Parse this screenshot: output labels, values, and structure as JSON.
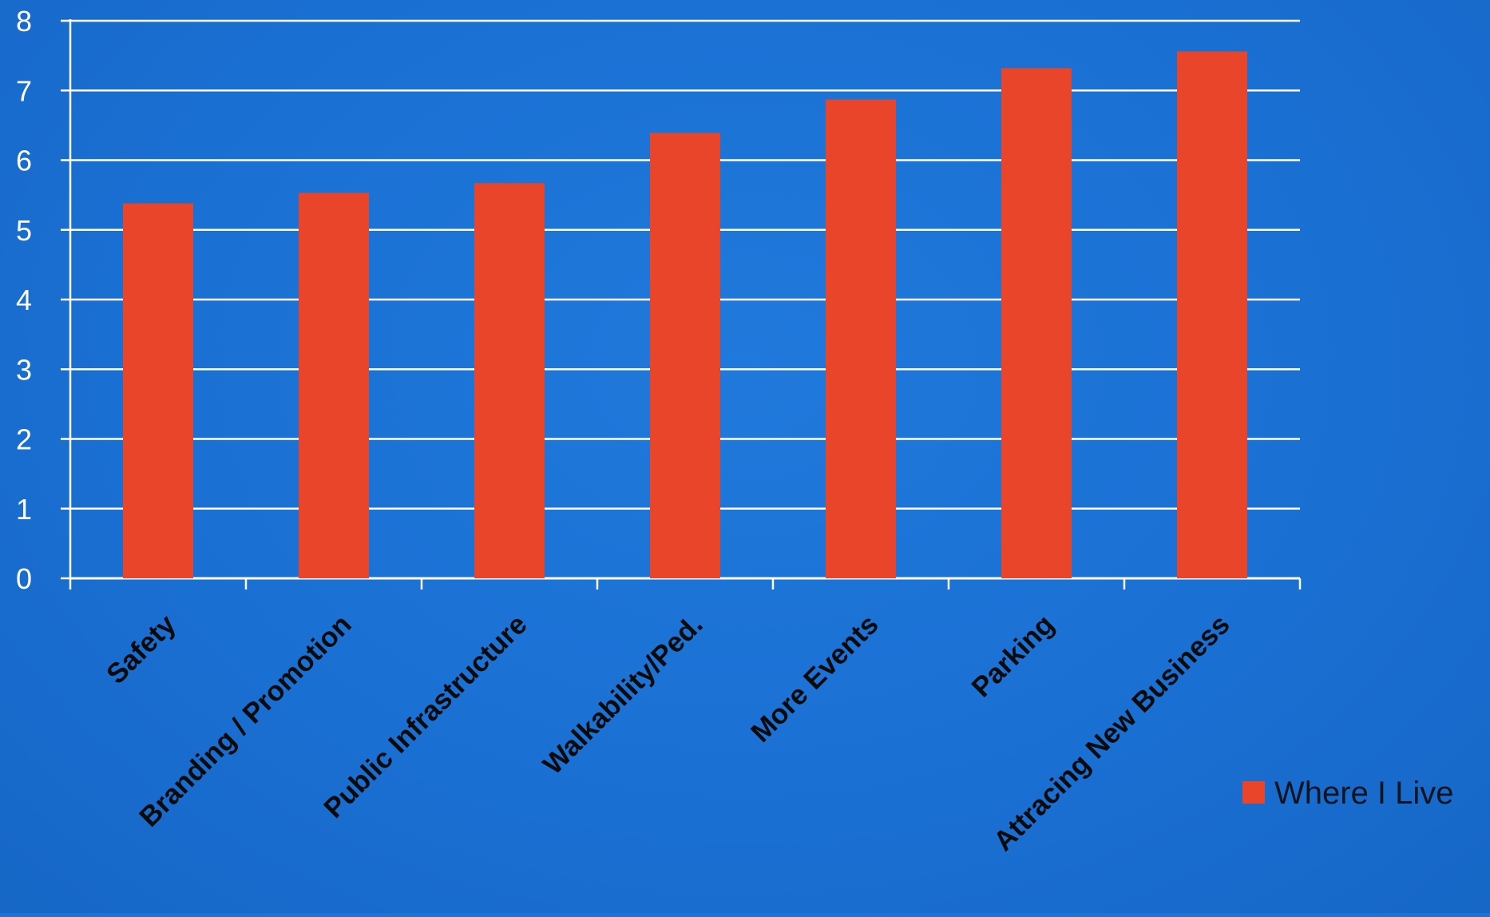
{
  "chart_data": {
    "type": "bar",
    "title": "",
    "xlabel": "",
    "ylabel": "",
    "ylim": [
      0,
      8
    ],
    "yticks": [
      0,
      1,
      2,
      3,
      4,
      5,
      6,
      7,
      8
    ],
    "grid": true,
    "legend_position": "bottom-right",
    "categories": [
      "Safety",
      "Branding / Promotion",
      "Public Infrastructure",
      "Walkability/Ped.",
      "More Events",
      "Parking",
      "Attracing New Business"
    ],
    "series": [
      {
        "name": "Where I Live",
        "values": [
          5.38,
          5.53,
          5.67,
          6.39,
          6.87,
          7.32,
          7.56
        ],
        "color": "#e8452a"
      }
    ]
  },
  "colors": {
    "background": "#1d74d6",
    "gridline": "#ffffff",
    "tick_text": "#ffffff",
    "category_text": "#0b0b0b",
    "bar": "#e8452a"
  }
}
